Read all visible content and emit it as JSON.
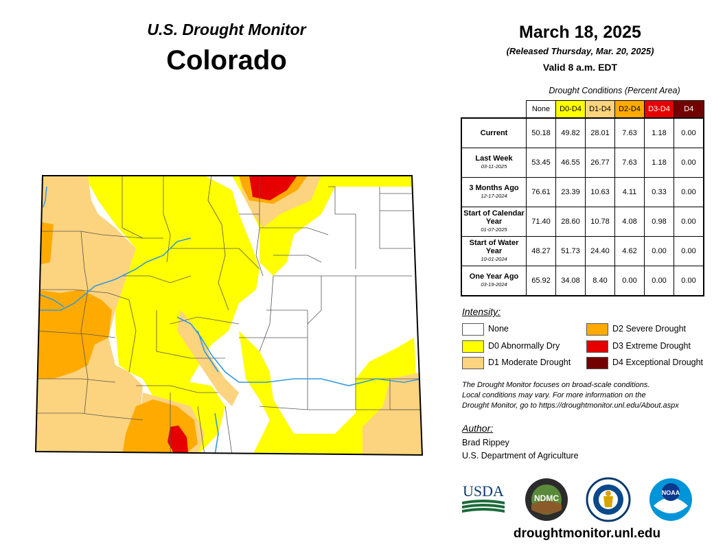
{
  "header": {
    "subtitle": "U.S. Drought Monitor",
    "title": "Colorado"
  },
  "release": {
    "date": "March 18, 2025",
    "released": "(Released Thursday, Mar. 20, 2025)",
    "valid": "Valid 8 a.m. EDT"
  },
  "conditions_table": {
    "caption": "Drought Conditions (Percent Area)",
    "columns": [
      {
        "label": "None",
        "color": "#ffffff",
        "text_color": "#000000"
      },
      {
        "label": "D0-D4",
        "color": "#ffff00",
        "text_color": "#000000"
      },
      {
        "label": "D1-D4",
        "color": "#fcd37f",
        "text_color": "#000000"
      },
      {
        "label": "D2-D4",
        "color": "#ffaa00",
        "text_color": "#000000"
      },
      {
        "label": "D3-D4",
        "color": "#e60000",
        "text_color": "#ffffff"
      },
      {
        "label": "D4",
        "color": "#730000",
        "text_color": "#ffffff"
      }
    ],
    "rows": [
      {
        "label": "Current",
        "date": "",
        "values": [
          "50.18",
          "49.82",
          "28.01",
          "7.63",
          "1.18",
          "0.00"
        ]
      },
      {
        "label": "Last Week",
        "date": "03-11-2025",
        "values": [
          "53.45",
          "46.55",
          "26.77",
          "7.63",
          "1.18",
          "0.00"
        ]
      },
      {
        "label": "3 Months Ago",
        "date": "12-17-2024",
        "values": [
          "76.61",
          "23.39",
          "10.63",
          "4.11",
          "0.33",
          "0.00"
        ]
      },
      {
        "label": "Start of Calendar Year",
        "date": "01-07-2025",
        "values": [
          "71.40",
          "28.60",
          "10.78",
          "4.08",
          "0.98",
          "0.00"
        ]
      },
      {
        "label": "Start of Water Year",
        "date": "10-01-2024",
        "values": [
          "48.27",
          "51.73",
          "24.40",
          "4.62",
          "0.00",
          "0.00"
        ]
      },
      {
        "label": "One Year Ago",
        "date": "03-19-2024",
        "values": [
          "65.92",
          "34.08",
          "8.40",
          "0.00",
          "0.00",
          "0.00"
        ]
      }
    ]
  },
  "legend": {
    "title": "Intensity:",
    "items": [
      {
        "label": "None",
        "color": "#ffffff"
      },
      {
        "label": "D0 Abnormally Dry",
        "color": "#ffff00"
      },
      {
        "label": "D1 Moderate Drought",
        "color": "#fcd37f"
      },
      {
        "label": "D2 Severe Drought",
        "color": "#ffaa00"
      },
      {
        "label": "D3 Extreme Drought",
        "color": "#e60000"
      },
      {
        "label": "D4 Exceptional Drought",
        "color": "#730000"
      }
    ]
  },
  "note": {
    "line1": "The Drought Monitor focuses on broad-scale conditions.",
    "line2": "Local conditions may vary. For more information on the",
    "line3": "Drought Monitor, go to https://droughtmonitor.unl.edu/About.aspx"
  },
  "author": {
    "title": "Author:",
    "name": "Brad Rippey",
    "org": "U.S. Department of Agriculture"
  },
  "logos": {
    "usda": "USDA",
    "ndmc": "NDMC",
    "doc": "commerce-seal",
    "noaa": "NOAA"
  },
  "site_url": "droughtmonitor.unl.edu",
  "colors": {
    "river": "#3399dd",
    "county_line": "#555555",
    "state_border": "#000000"
  }
}
